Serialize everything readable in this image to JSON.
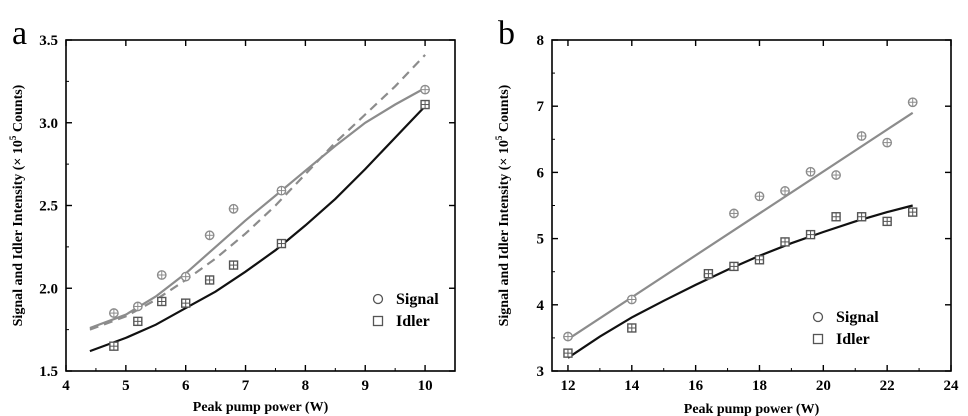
{
  "chart_data": [
    {
      "type": "scatter",
      "panel": "a",
      "xlabel": "Peak pump power (W)",
      "ylabel": "Signal and Idler Intensity (× 10",
      "ylabel_sup": "5",
      "ylabel_tail": " Counts)",
      "xlim": [
        4,
        10.5
      ],
      "ylim": [
        1.5,
        3.5
      ],
      "xticks": [
        4,
        5,
        6,
        7,
        8,
        9,
        10
      ],
      "yticks": [
        1.5,
        2.0,
        2.5,
        3.0,
        3.5
      ],
      "xtick_labels": [
        "4",
        "5",
        "6",
        "7",
        "8",
        "9",
        "10"
      ],
      "ytick_labels": [
        "1.5",
        "2.0",
        "2.5",
        "3.0",
        "3.5"
      ],
      "legend_position": "bottom-right",
      "legend": [
        {
          "name": "Signal",
          "marker": "circle"
        },
        {
          "name": "Idler",
          "marker": "square"
        }
      ],
      "series": [
        {
          "name": "Signal",
          "marker": "circle",
          "color": "#8c8c8c",
          "x": [
            4.8,
            5.2,
            5.6,
            6.0,
            6.4,
            6.8,
            7.6,
            10.0
          ],
          "y": [
            1.85,
            1.89,
            2.08,
            2.07,
            2.32,
            2.48,
            2.59,
            3.2
          ]
        },
        {
          "name": "Idler",
          "marker": "square",
          "color": "#555555",
          "x": [
            4.8,
            5.2,
            5.6,
            6.0,
            6.4,
            6.8,
            7.6,
            10.0
          ],
          "y": [
            1.65,
            1.8,
            1.92,
            1.91,
            2.05,
            2.14,
            2.27,
            3.11
          ]
        }
      ],
      "curves": [
        {
          "style": "solid",
          "color": "#8c8c8c",
          "x": [
            4.4,
            5.0,
            5.5,
            6.0,
            6.5,
            7.0,
            7.5,
            8.0,
            8.5,
            9.0,
            9.5,
            10.0
          ],
          "y": [
            1.76,
            1.84,
            1.95,
            2.09,
            2.25,
            2.41,
            2.56,
            2.71,
            2.86,
            3.0,
            3.11,
            3.21
          ]
        },
        {
          "style": "dashed",
          "color": "#8c8c8c",
          "x": [
            4.4,
            5.0,
            5.5,
            6.0,
            6.5,
            7.0,
            7.5,
            8.0,
            8.5,
            9.0,
            9.5,
            10.0
          ],
          "y": [
            1.75,
            1.83,
            1.93,
            2.05,
            2.18,
            2.33,
            2.5,
            2.69,
            2.88,
            3.05,
            3.22,
            3.41
          ]
        },
        {
          "style": "solid",
          "color": "#111111",
          "x": [
            4.4,
            5.0,
            5.5,
            6.0,
            6.5,
            7.0,
            7.5,
            8.0,
            8.5,
            9.0,
            9.5,
            10.0
          ],
          "y": [
            1.62,
            1.7,
            1.78,
            1.88,
            1.98,
            2.1,
            2.23,
            2.38,
            2.54,
            2.72,
            2.91,
            3.1
          ]
        }
      ]
    },
    {
      "type": "scatter",
      "panel": "b",
      "xlabel": "Peak pump power (W)",
      "ylabel": "Signal and Idler Intensity (× 10",
      "ylabel_sup": "5",
      "ylabel_tail": " Counts)",
      "xlim": [
        11.5,
        24
      ],
      "ylim": [
        3,
        8
      ],
      "xticks": [
        12,
        14,
        16,
        18,
        20,
        22,
        24
      ],
      "yticks": [
        3,
        4,
        5,
        6,
        7,
        8
      ],
      "xtick_labels": [
        "12",
        "14",
        "16",
        "18",
        "20",
        "22",
        "24"
      ],
      "ytick_labels": [
        "3",
        "4",
        "5",
        "6",
        "7",
        "8"
      ],
      "legend_position": "bottom-right",
      "legend": [
        {
          "name": "Signal",
          "marker": "circle"
        },
        {
          "name": "Idler",
          "marker": "square"
        }
      ],
      "series": [
        {
          "name": "Signal",
          "marker": "circle",
          "color": "#8c8c8c",
          "x": [
            12.0,
            14.0,
            16.4,
            17.2,
            18.0,
            18.8,
            19.6,
            20.4,
            21.2,
            22.0,
            22.8
          ],
          "y": [
            3.52,
            4.08,
            4.45,
            5.38,
            5.64,
            5.72,
            6.01,
            5.96,
            6.55,
            6.45,
            7.06
          ]
        },
        {
          "name": "Idler",
          "marker": "square",
          "color": "#555555",
          "x": [
            12.0,
            14.0,
            16.4,
            17.2,
            18.0,
            18.8,
            19.6,
            20.4,
            21.2,
            22.0,
            22.8
          ],
          "y": [
            3.27,
            3.65,
            4.47,
            4.58,
            4.68,
            4.95,
            5.06,
            5.33,
            5.33,
            5.26,
            5.4
          ]
        }
      ],
      "curves": [
        {
          "style": "solid",
          "color": "#8c8c8c",
          "x": [
            12.0,
            22.8
          ],
          "y": [
            3.48,
            6.9
          ]
        },
        {
          "style": "solid",
          "color": "#111111",
          "x": [
            12.0,
            13.0,
            14.0,
            15.0,
            16.0,
            17.0,
            18.0,
            19.0,
            20.0,
            21.0,
            22.0,
            22.8
          ],
          "y": [
            3.2,
            3.52,
            3.81,
            4.06,
            4.3,
            4.53,
            4.74,
            4.93,
            5.1,
            5.26,
            5.4,
            5.5
          ]
        }
      ]
    }
  ]
}
